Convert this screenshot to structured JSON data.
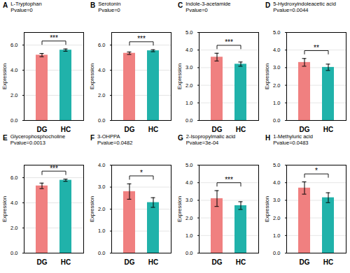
{
  "chart_data": [
    {
      "type": "bar",
      "panel_label": "A",
      "title": "L-Tryptophan",
      "subtitle": "Pvalue=0",
      "ylabel": "Expression",
      "categories": [
        "DG",
        "HC"
      ],
      "values": [
        5.2,
        5.6
      ],
      "errors": [
        0.13,
        0.09
      ],
      "colors": [
        "#F08080",
        "#20B2AA"
      ],
      "ylim": [
        0,
        7
      ],
      "yticks": [
        0,
        2,
        4,
        6
      ],
      "grid": true,
      "annotation": "***"
    },
    {
      "type": "bar",
      "panel_label": "B",
      "title": "Serotonin",
      "subtitle": "Pvalue=0",
      "ylabel": "Expression",
      "categories": [
        "DG",
        "HC"
      ],
      "values": [
        5.35,
        5.55
      ],
      "errors": [
        0.1,
        0.08
      ],
      "colors": [
        "#F08080",
        "#20B2AA"
      ],
      "ylim": [
        0,
        7
      ],
      "yticks": [
        0,
        2,
        4,
        6
      ],
      "grid": true,
      "annotation": "***"
    },
    {
      "type": "bar",
      "panel_label": "C",
      "title": "Indole-3-acetamide",
      "subtitle": "Pvalue=0",
      "ylabel": "Expression",
      "categories": [
        "DG",
        "HC"
      ],
      "values": [
        3.6,
        3.2
      ],
      "errors": [
        0.22,
        0.12
      ],
      "colors": [
        "#F08080",
        "#20B2AA"
      ],
      "ylim": [
        0,
        5
      ],
      "yticks": [
        0,
        1,
        2,
        3,
        4,
        5
      ],
      "grid": true,
      "annotation": "***"
    },
    {
      "type": "bar",
      "panel_label": "D",
      "title": "5-Hydroxyindoleacetic acid",
      "subtitle": "Pvalue=0.0044",
      "ylabel": "Expression",
      "categories": [
        "DG",
        "HC"
      ],
      "values": [
        3.3,
        3.02
      ],
      "errors": [
        0.22,
        0.18
      ],
      "colors": [
        "#F08080",
        "#20B2AA"
      ],
      "ylim": [
        0,
        5
      ],
      "yticks": [
        0,
        1,
        2,
        3,
        4,
        5
      ],
      "grid": true,
      "annotation": "**"
    },
    {
      "type": "bar",
      "panel_label": "E",
      "title": "Glycerophosphocholine",
      "subtitle": "Pvalue=0.0013",
      "ylabel": "Expression",
      "categories": [
        "DG",
        "HC"
      ],
      "values": [
        5.35,
        5.8
      ],
      "errors": [
        0.22,
        0.09
      ],
      "colors": [
        "#F08080",
        "#20B2AA"
      ],
      "ylim": [
        0,
        7
      ],
      "yticks": [
        0,
        2,
        4,
        6
      ],
      "grid": true,
      "annotation": "***"
    },
    {
      "type": "bar",
      "panel_label": "F",
      "title": "3-OHPPA",
      "subtitle": "Pvalue=0.0482",
      "ylabel": "Expression",
      "categories": [
        "DG",
        "HC"
      ],
      "values": [
        2.8,
        2.3
      ],
      "errors": [
        0.35,
        0.22
      ],
      "colors": [
        "#F08080",
        "#20B2AA"
      ],
      "ylim": [
        0,
        4
      ],
      "yticks": [
        0,
        1,
        2,
        3,
        4
      ],
      "grid": true,
      "annotation": "*"
    },
    {
      "type": "bar",
      "panel_label": "G",
      "title": "2-Isopropylmalic acid",
      "subtitle": "Pvalue=3e-04",
      "ylabel": "Expression",
      "categories": [
        "DG",
        "HC"
      ],
      "values": [
        3.1,
        2.7
      ],
      "errors": [
        0.45,
        0.22
      ],
      "colors": [
        "#F08080",
        "#20B2AA"
      ],
      "ylim": [
        0,
        5
      ],
      "yticks": [
        0,
        1,
        2,
        3,
        4,
        5
      ],
      "grid": true,
      "annotation": "***"
    },
    {
      "type": "bar",
      "panel_label": "H",
      "title": "1-Methyluric acid",
      "subtitle": "Pvalue=0.0483",
      "ylabel": "Expression",
      "categories": [
        "DG",
        "HC"
      ],
      "values": [
        3.7,
        3.15
      ],
      "errors": [
        0.35,
        0.28
      ],
      "colors": [
        "#F08080",
        "#20B2AA"
      ],
      "ylim": [
        0,
        5
      ],
      "yticks": [
        0,
        1,
        2,
        3,
        4,
        5
      ],
      "grid": true,
      "annotation": "*"
    }
  ]
}
